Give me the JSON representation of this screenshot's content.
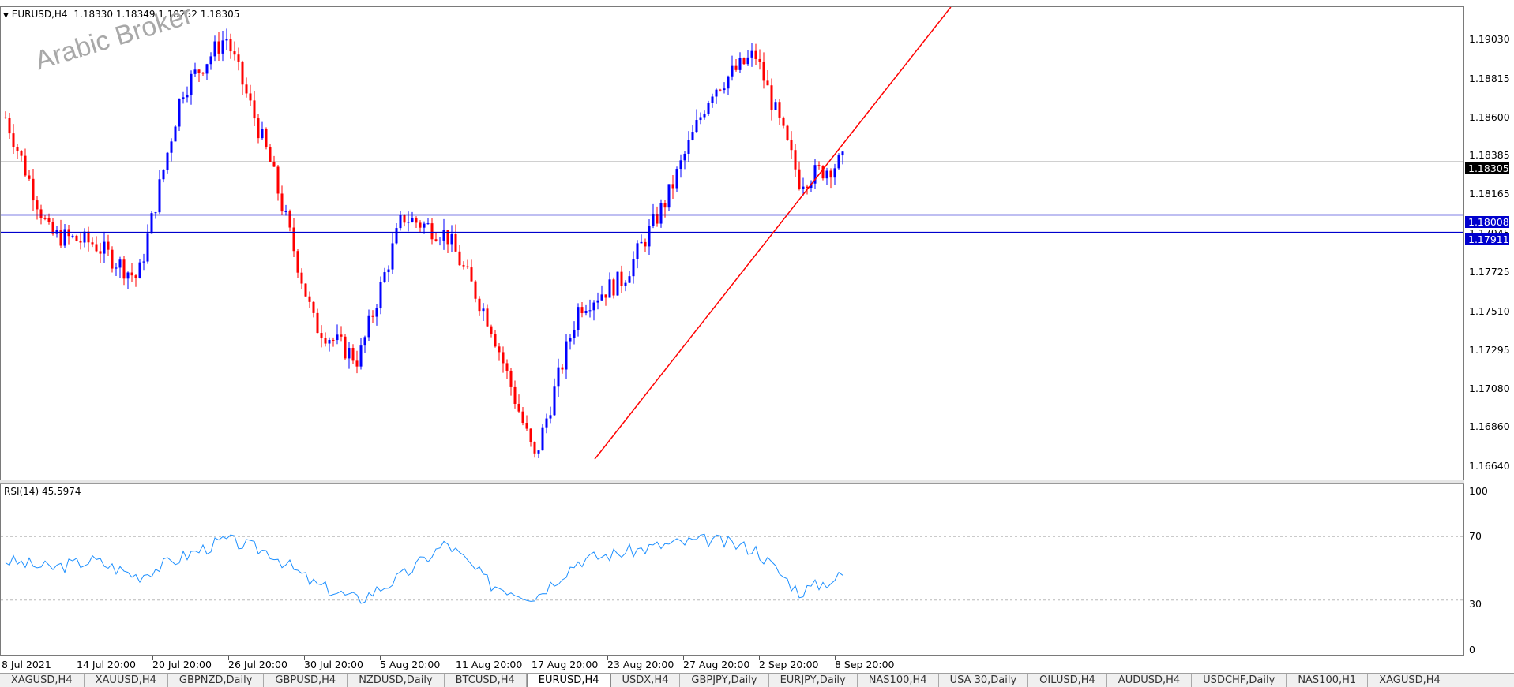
{
  "chart": {
    "symbol_header": "EURUSD,H4",
    "ohlc": "1.18330 1.18349 1.18252 1.18305",
    "watermark": "Arabic Broker",
    "price_labels": [
      "1.19030",
      "1.18815",
      "1.18600",
      "1.18385",
      "1.18165",
      "1.17945",
      "1.17725",
      "1.17510",
      "1.17295",
      "1.17080",
      "1.16860",
      "1.16640"
    ],
    "current_price": "1.18305",
    "support_level_1": "1.18008",
    "support_level_2": "1.17911",
    "colors": {
      "bull": "#0000ff",
      "bear": "#ff0000",
      "trendline": "#ff0000",
      "hline": "#0000cd",
      "rsi": "#1e90ff",
      "label_dark": "#000000"
    }
  },
  "rsi": {
    "header": "RSI(14) 45.5974",
    "levels": [
      "100",
      "70",
      "30",
      "0"
    ]
  },
  "time_axis": [
    "8 Jul 2021",
    "14 Jul 20:00",
    "20 Jul 20:00",
    "26 Jul 20:00",
    "30 Jul 20:00",
    "5 Aug 20:00",
    "11 Aug 20:00",
    "17 Aug 20:00",
    "23 Aug 20:00",
    "27 Aug 20:00",
    "2 Sep 20:00",
    "8 Sep 20:00"
  ],
  "tabs": [
    "XAGUSD,H4",
    "XAUUSD,H4",
    "GBPNZD,Daily",
    "GBPUSD,H4",
    "NZDUSD,Daily",
    "BTCUSD,H4",
    "EURUSD,H4",
    "USDX,H4",
    "GBPJPY,Daily",
    "EURJPY,Daily",
    "NAS100,H4",
    "USA 30,Daily",
    "OILUSD,H4",
    "AUDUSD,H4",
    "USDCHF,Daily",
    "NAS100,H1",
    "XAGUSD,H4"
  ],
  "active_tab": "EURUSD,H4",
  "chart_data": {
    "type": "candlestick",
    "symbol": "EURUSD",
    "timeframe": "H4",
    "ylim": [
      1.1655,
      1.1915
    ],
    "x": [
      "8 Jul 2021",
      "14 Jul 20:00",
      "20 Jul 20:00",
      "26 Jul 20:00",
      "30 Jul 20:00",
      "5 Aug 20:00",
      "11 Aug 20:00",
      "17 Aug 20:00",
      "23 Aug 20:00",
      "27 Aug 20:00",
      "2 Sep 20:00",
      "8 Sep 20:00"
    ],
    "close_path": [
      1.1855,
      1.179,
      1.1785,
      1.1765,
      1.187,
      1.19,
      1.183,
      1.174,
      1.172,
      1.18,
      1.179,
      1.174,
      1.1665,
      1.175,
      1.1765,
      1.181,
      1.187,
      1.189,
      1.182,
      1.18305
    ],
    "rsi": [
      55,
      50,
      55,
      45,
      57,
      68,
      60,
      40,
      30,
      45,
      66,
      40,
      32,
      55,
      60,
      65,
      68,
      62,
      35,
      45.5974
    ],
    "hlines": [
      1.18008,
      1.17911
    ],
    "trendline": {
      "from": [
        "17 Aug 20:00",
        1.1665
      ],
      "through": [
        "6 Sep",
        1.1835
      ]
    }
  }
}
